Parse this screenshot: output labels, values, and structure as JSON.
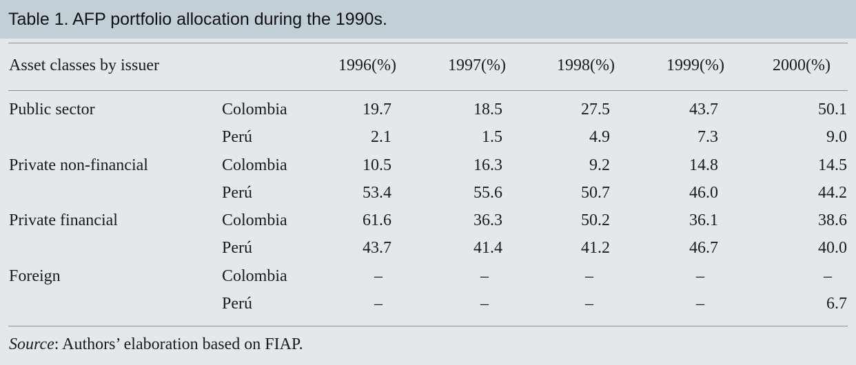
{
  "title": "Table 1. AFP portfolio allocation during the 1990s.",
  "header": {
    "asset_label": "Asset classes by issuer",
    "years": [
      "1996(%)",
      "1997(%)",
      "1998(%)",
      "1999(%)",
      "2000(%)"
    ]
  },
  "rows": [
    {
      "category": "Public sector",
      "country": "Colombia",
      "values": [
        "19.7",
        "18.5",
        "27.5",
        "43.7",
        "50.1"
      ]
    },
    {
      "category": "",
      "country": "Perú",
      "values": [
        "2.1",
        "1.5",
        "4.9",
        "7.3",
        "9.0"
      ]
    },
    {
      "category": "Private non-financial",
      "country": "Colombia",
      "values": [
        "10.5",
        "16.3",
        "9.2",
        "14.8",
        "14.5"
      ]
    },
    {
      "category": "",
      "country": "Perú",
      "values": [
        "53.4",
        "55.6",
        "50.7",
        "46.0",
        "44.2"
      ]
    },
    {
      "category": "Private financial",
      "country": "Colombia",
      "values": [
        "61.6",
        "36.3",
        "50.2",
        "36.1",
        "38.6"
      ]
    },
    {
      "category": "",
      "country": "Perú",
      "values": [
        "43.7",
        "41.4",
        "41.2",
        "46.7",
        "40.0"
      ]
    },
    {
      "category": "Foreign",
      "country": "Colombia",
      "values": [
        "–",
        "–",
        "–",
        "–",
        "–"
      ]
    },
    {
      "category": "",
      "country": "Perú",
      "values": [
        "–",
        "–",
        "–",
        "–",
        "6.7"
      ]
    }
  ],
  "source": {
    "label": "Source",
    "text": ": Authors’ elaboration based on FIAP."
  }
}
